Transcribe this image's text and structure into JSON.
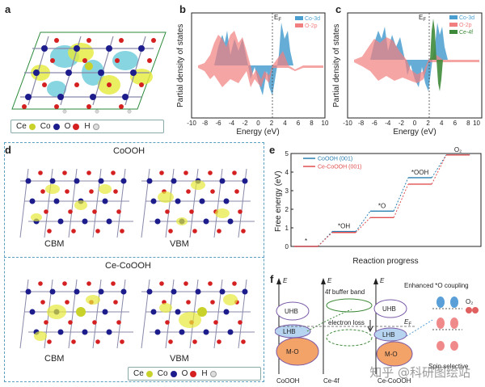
{
  "panel_labels": {
    "a": "a",
    "b": "b",
    "c": "c",
    "d": "d",
    "e": "e",
    "f": "f"
  },
  "legend_a": {
    "items": [
      {
        "label": "Ce",
        "color": "#c8d22a"
      },
      {
        "label": "Co",
        "color": "#1c1c8c"
      },
      {
        "label": "O",
        "color": "#d42020"
      },
      {
        "label": "H",
        "color": "#d8d8d8"
      }
    ]
  },
  "legend_d": {
    "items": [
      {
        "label": "Ce",
        "color": "#c8d22a"
      },
      {
        "label": "Co",
        "color": "#1c1c8c"
      },
      {
        "label": "O",
        "color": "#d42020"
      },
      {
        "label": "H",
        "color": "#d8d8d8"
      }
    ]
  },
  "panel_d": {
    "top_title": "CoOOH",
    "top_left_label": "CBM",
    "top_right_label": "VBM",
    "bottom_title": "Ce-CoOOH",
    "bottom_left_label": "CBM",
    "bottom_right_label": "VBM"
  },
  "pdos_b": {
    "ylabel": "Partial density of states",
    "xlabel": "Energy (eV)",
    "ef_label": "E",
    "ef_sub": "F",
    "xticks": [
      "-10",
      "-8",
      "-6",
      "-4",
      "-2",
      "0",
      "2",
      "4",
      "6",
      "8",
      "10"
    ],
    "legend": [
      {
        "label": "Co-3d",
        "color": "#4a9fd0"
      },
      {
        "label": "O-2p",
        "color": "#f27f7f"
      }
    ]
  },
  "pdos_c": {
    "ylabel": "Partial density of states",
    "xlabel": "Energy (eV)",
    "ef_label": "E",
    "ef_sub": "F",
    "xticks": [
      "-10",
      "-8",
      "-6",
      "-4",
      "-2",
      "0",
      "2",
      "4",
      "6",
      "8",
      "10"
    ],
    "legend": [
      {
        "label": "Co-3d",
        "color": "#4a9fd0"
      },
      {
        "label": "O-2p",
        "color": "#f27f7f"
      },
      {
        "label": "Ce-4f",
        "color": "#3f8a3a"
      }
    ]
  },
  "chart_data": {
    "type": "line",
    "title": "",
    "xlabel": "Reaction progress",
    "ylabel": "Free energy (eV)",
    "ylim": [
      0,
      5
    ],
    "yticks": [
      "0",
      "1",
      "2",
      "3",
      "4",
      "5"
    ],
    "steps": [
      "*",
      "*OH",
      "*O",
      "*OOH",
      "O2"
    ],
    "step_labels": [
      "*",
      "*OH",
      "*O",
      "*OOH",
      "O₂"
    ],
    "series": [
      {
        "name": "CoOOH (001)",
        "color": "#2a7fb0",
        "values": [
          0.0,
          0.8,
          1.9,
          3.7,
          4.92
        ]
      },
      {
        "name": "Ce-CoOOH (001)",
        "color": "#e05050",
        "values": [
          0.0,
          0.75,
          1.55,
          3.35,
          4.92
        ]
      }
    ]
  },
  "panel_f": {
    "e_axis_label": "E",
    "col_labels": [
      "CoOOH",
      "Ce-4f",
      "Ce-CoOOH"
    ],
    "uhb": "UHB",
    "lhb": "LHB",
    "mo": "M-O",
    "buffer_band": "4f buffer band",
    "electron_loss": "electron loss",
    "ef": "E",
    "ef_sub": "F",
    "coupling_title": "Enhanced *O coupling",
    "o2": "O₂",
    "spin_label": "Spin selective"
  },
  "watermark": "知乎 @科研图绘站"
}
